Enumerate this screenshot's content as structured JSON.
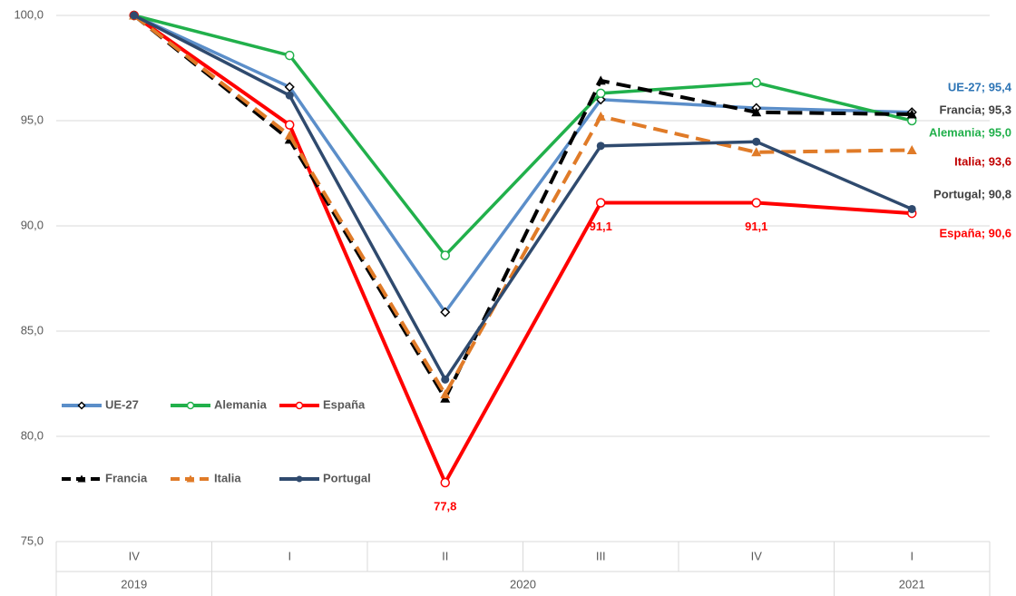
{
  "chart_data": {
    "type": "line",
    "categories": [
      "IV",
      "I",
      "II",
      "III",
      "IV",
      "I"
    ],
    "years": [
      "2019",
      "2020",
      "2020",
      "2020",
      "2020",
      "2021"
    ],
    "ylim": [
      75,
      100
    ],
    "yticks": [
      {
        "value": 75,
        "label": "75,0"
      },
      {
        "value": 80,
        "label": "80,0"
      },
      {
        "value": 85,
        "label": "85,0"
      },
      {
        "value": 90,
        "label": "90,0"
      },
      {
        "value": 95,
        "label": "95,0"
      },
      {
        "value": 100,
        "label": "100,0"
      }
    ],
    "grid": true,
    "series": [
      {
        "name": "UE-27",
        "color": "#5b8ec9",
        "marker": "diamond",
        "dashed": false,
        "label_color": "#2e75b6",
        "values": [
          100,
          96.6,
          85.9,
          96.0,
          95.6,
          95.4
        ],
        "value_labels": [
          null,
          null,
          null,
          null,
          null,
          "UE-27; 95,4"
        ]
      },
      {
        "name": "Alemania",
        "color": "#21b04b",
        "marker": "circle-open",
        "dashed": false,
        "label_color": "#21b04b",
        "values": [
          100,
          98.1,
          88.6,
          96.3,
          96.8,
          95.0
        ],
        "value_labels": [
          null,
          null,
          null,
          null,
          null,
          "Alemania; 95,0"
        ]
      },
      {
        "name": "España",
        "color": "#ff0000",
        "marker": "circle-open",
        "dashed": false,
        "label_color": "#ff0000",
        "values": [
          100,
          94.8,
          77.8,
          91.1,
          91.1,
          90.6
        ],
        "value_labels": [
          null,
          null,
          "77,8",
          "91,1",
          "91,1",
          "España; 90,6"
        ]
      },
      {
        "name": "Francia",
        "color": "#000000",
        "marker": "triangle",
        "dashed": true,
        "label_color": "#404040",
        "values": [
          100,
          94.1,
          81.8,
          96.9,
          95.4,
          95.3
        ],
        "value_labels": [
          null,
          null,
          null,
          null,
          null,
          "Francia; 95,3"
        ]
      },
      {
        "name": "Italia",
        "color": "#e07b28",
        "marker": "triangle",
        "dashed": true,
        "label_color": "#c00000",
        "values": [
          100,
          94.3,
          82.0,
          95.2,
          93.5,
          93.6
        ],
        "value_labels": [
          null,
          null,
          null,
          null,
          null,
          "Italia; 93,6"
        ]
      },
      {
        "name": "Portugal",
        "color": "#2f4a6e",
        "marker": "circle",
        "dashed": false,
        "label_color": "#404040",
        "values": [
          100,
          96.2,
          82.7,
          93.8,
          94.0,
          90.8
        ],
        "value_labels": [
          null,
          null,
          null,
          null,
          null,
          "Portugal; 90,8"
        ]
      }
    ]
  }
}
